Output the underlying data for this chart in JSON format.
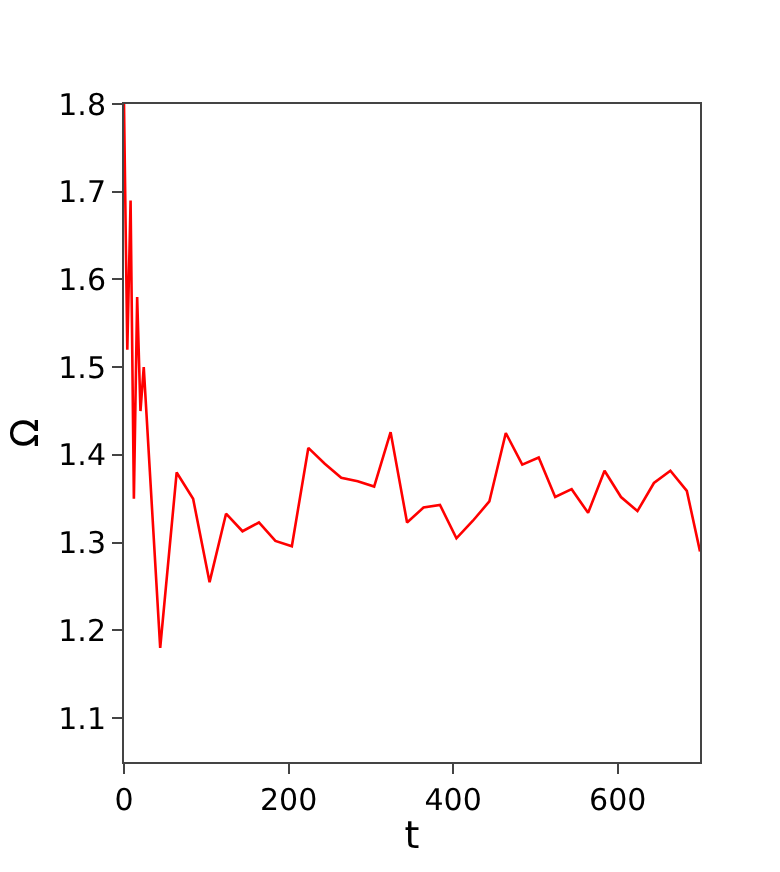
{
  "chart_data": {
    "type": "line",
    "xlabel": "t",
    "ylabel": "Ω",
    "x": [
      0,
      4,
      8,
      12,
      16,
      20,
      24,
      44,
      64,
      84,
      104,
      124,
      144,
      164,
      184,
      204,
      224,
      244,
      264,
      284,
      304,
      324,
      344,
      364,
      384,
      404,
      424,
      444,
      464,
      484,
      504,
      524,
      544,
      564,
      584,
      604,
      624,
      644,
      664,
      684,
      700
    ],
    "series": [
      {
        "color": "#ff0000",
        "values": [
          1.8,
          1.52,
          1.69,
          1.35,
          1.58,
          1.45,
          1.5,
          1.18,
          1.38,
          1.35,
          1.255,
          1.333,
          1.313,
          1.323,
          1.302,
          1.296,
          1.408,
          1.39,
          1.374,
          1.37,
          1.364,
          1.426,
          1.323,
          1.34,
          1.343,
          1.305,
          1.325,
          1.347,
          1.425,
          1.389,
          1.397,
          1.352,
          1.361,
          1.334,
          1.382,
          1.352,
          1.336,
          1.368,
          1.382,
          1.359,
          1.29
        ]
      }
    ],
    "xlim": [
      0,
      700
    ],
    "ylim": [
      1.05,
      1.8
    ],
    "xticks": [
      0,
      200,
      400,
      600
    ],
    "yticks": [
      1.1,
      1.2,
      1.3,
      1.4,
      1.5,
      1.6,
      1.7,
      1.8
    ],
    "marker": "none",
    "line_style": "solid"
  }
}
